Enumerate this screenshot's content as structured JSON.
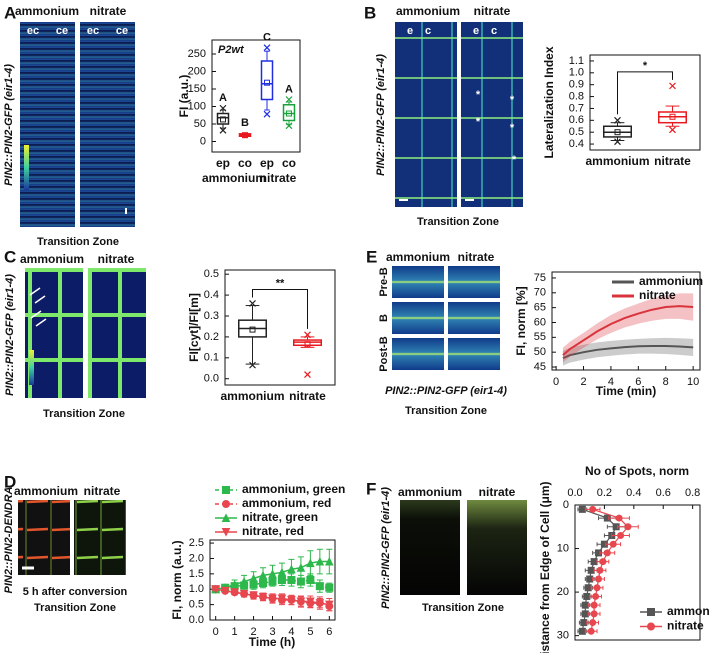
{
  "panels": [
    {
      "letter": "A",
      "headers": [
        "ammonium",
        "nitrate"
      ],
      "image_labels": [
        "ec",
        "ce",
        "ec",
        "ce"
      ],
      "construct": "PIN2::PIN2-GFP (eir1-4)",
      "zone": "Transition Zone"
    },
    {
      "letter": "B",
      "headers": [
        "ammonium",
        "nitrate"
      ],
      "image_labels": [
        "e",
        "c",
        "e",
        "c"
      ],
      "marks": "*",
      "construct": "PIN2::PIN2-GFP (eir1-4)",
      "zone": "Transition Zone"
    },
    {
      "letter": "C",
      "headers": [
        "ammonium",
        "nitrate"
      ],
      "construct": "PIN2::PIN2-GFP (eir1-4)",
      "zone": "Transition Zone"
    },
    {
      "letter": "D",
      "headers": [
        "ammonium",
        "nitrate"
      ],
      "construct": "PIN2::PIN2-DENDRA",
      "caption": "5 h after conversion",
      "zone": "Transition Zone"
    },
    {
      "letter": "E",
      "headers": [
        "ammonium",
        "nitrate"
      ],
      "rows": [
        "Pre-B",
        "B",
        "Post-B"
      ],
      "construct": "PIN2::PIN2-GFP (eir1-4)",
      "zone": "Transition Zone"
    },
    {
      "letter": "F",
      "headers": [
        "ammonium",
        "nitrate"
      ],
      "construct": "PIN2::PIN2-GFP (eir1-4)",
      "zone": "Transition Zone"
    }
  ],
  "chart_data": [
    {
      "type": "box",
      "title": "P2wt",
      "ylabel": "FI (a.u.)",
      "categories": [
        "ep",
        "co",
        "ep",
        "co"
      ],
      "groups": [
        "ammonium",
        "nitrate"
      ],
      "ylim": [
        -30,
        290
      ],
      "yticks": [
        0,
        50,
        100,
        150,
        200,
        250
      ],
      "annotations": [
        "A",
        "B",
        "C",
        "A"
      ],
      "boxes": [
        {
          "color": "#222222",
          "whisker_low": 38,
          "q1": 50,
          "median": 68,
          "q3": 80,
          "whisker_high": 90,
          "mean": 63,
          "outliers": [
            95,
            32
          ]
        },
        {
          "color": "#e8191f",
          "whisker_low": 13,
          "q1": 15,
          "median": 19,
          "q3": 22,
          "whisker_high": 24,
          "mean": 18,
          "outliers": []
        },
        {
          "color": "#1f2fe0",
          "whisker_low": 90,
          "q1": 120,
          "median": 165,
          "q3": 230,
          "whisker_high": 258,
          "mean": 168,
          "outliers": [
            268,
            78
          ]
        },
        {
          "color": "#18a33a",
          "whisker_low": 48,
          "q1": 60,
          "median": 80,
          "q3": 105,
          "whisker_high": 113,
          "mean": 80,
          "outliers": [
            120,
            45
          ]
        }
      ]
    },
    {
      "type": "box",
      "ylabel": "Lateralization Index",
      "categories": [
        "ammonium",
        "nitrate"
      ],
      "ylim": [
        0.35,
        1.15
      ],
      "yticks": [
        0.4,
        0.5,
        0.6,
        0.7,
        0.8,
        0.9,
        {
          "value": 1,
          "label": "1.0"
        },
        1.1
      ],
      "significance": "*",
      "boxes": [
        {
          "color": "#222222",
          "whisker_low": 0.43,
          "q1": 0.46,
          "median": 0.5,
          "q3": 0.55,
          "whisker_high": 0.58,
          "mean": 0.5,
          "outliers": [
            0.6,
            0.42
          ]
        },
        {
          "color": "#e8191f",
          "whisker_low": 0.55,
          "q1": 0.58,
          "median": 0.63,
          "q3": 0.67,
          "whisker_high": 0.72,
          "mean": 0.63,
          "outliers": [
            0.89,
            0.52
          ]
        }
      ]
    },
    {
      "type": "box",
      "ylabel": "FI[cyt]/FI[m]",
      "categories": [
        "ammonium",
        "nitrate"
      ],
      "ylim": [
        -0.03,
        0.52
      ],
      "yticks": [
        {
          "value": 0,
          "label": "0.0"
        },
        0.1,
        0.2,
        0.3,
        0.4,
        0.5
      ],
      "significance": "**",
      "boxes": [
        {
          "color": "#222222",
          "whisker_low": 0.07,
          "q1": 0.2,
          "median": 0.24,
          "q3": 0.28,
          "whisker_high": 0.35,
          "mean": 0.235,
          "outliers": [
            0.36,
            0.065
          ]
        },
        {
          "color": "#e8191f",
          "whisker_low": 0.15,
          "q1": 0.16,
          "median": 0.175,
          "q3": 0.185,
          "whisker_high": 0.2,
          "mean": 0.165,
          "outliers": [
            0.21,
            0.02
          ]
        }
      ]
    },
    {
      "type": "line",
      "ylabel": "FI, norm (a.u.)",
      "xlabel": "Time (h)",
      "x": [
        0,
        0.5,
        1,
        1.5,
        2,
        2.5,
        3,
        3.5,
        4,
        4.5,
        5,
        5.5,
        6
      ],
      "xlim": [
        -0.3,
        6.3
      ],
      "xticks": [
        0,
        1,
        2,
        3,
        4,
        5,
        6
      ],
      "ylim": [
        0,
        2.6
      ],
      "yticks": [
        {
          "value": 0,
          "label": "0.0"
        },
        0.5,
        {
          "value": 1,
          "label": "1.0"
        },
        1.5,
        {
          "value": 2,
          "label": "2.0"
        },
        2.5
      ],
      "series": [
        {
          "name": "ammonium, green",
          "color": "#2db84b",
          "marker": "square",
          "linestyle": "dashed",
          "values": [
            1,
            1.05,
            1.1,
            1.12,
            1.15,
            1.2,
            1.25,
            1.3,
            1.3,
            1.25,
            1.3,
            1.1,
            1.05
          ],
          "errors": [
            0,
            0.08,
            0.1,
            0.12,
            0.15,
            0.15,
            0.15,
            0.18,
            0.2,
            0.2,
            0.2,
            0.2,
            0.15
          ]
        },
        {
          "name": "ammonium, red",
          "color": "#e8474f",
          "marker": "circle",
          "linestyle": "dashed",
          "values": [
            1,
            0.95,
            0.9,
            0.85,
            0.8,
            0.75,
            0.7,
            0.65,
            0.65,
            0.6,
            0.55,
            0.55,
            0.45
          ],
          "errors": [
            0,
            0.05,
            0.08,
            0.1,
            0.1,
            0.12,
            0.12,
            0.15,
            0.15,
            0.15,
            0.15,
            0.15,
            0.15
          ]
        },
        {
          "name": "nitrate, green",
          "color": "#2db84b",
          "marker": "triangle",
          "linestyle": "solid",
          "values": [
            1,
            1.05,
            1.15,
            1.25,
            1.35,
            1.45,
            1.5,
            1.55,
            1.65,
            1.7,
            1.85,
            1.9,
            1.9
          ],
          "errors": [
            0,
            0.1,
            0.15,
            0.2,
            0.22,
            0.25,
            0.28,
            0.3,
            0.32,
            0.35,
            0.4,
            0.4,
            0.4
          ]
        },
        {
          "name": "nitrate, red",
          "color": "#e8474f",
          "marker": "triangle-down",
          "linestyle": "solid",
          "values": [
            1,
            0.95,
            0.9,
            0.85,
            0.8,
            0.75,
            0.7,
            0.7,
            0.65,
            0.6,
            0.6,
            0.55,
            0.5
          ],
          "errors": [
            0,
            0.05,
            0.08,
            0.1,
            0.12,
            0.12,
            0.15,
            0.15,
            0.15,
            0.18,
            0.18,
            0.2,
            0.2
          ]
        }
      ]
    },
    {
      "type": "line",
      "ylabel": "FI, norm [%]",
      "xlabel": "Time (min)",
      "x": [
        0.5,
        1,
        2,
        3,
        4,
        5,
        6,
        7,
        8,
        9,
        10
      ],
      "xlim": [
        -0.3,
        10.5
      ],
      "xticks": [
        0,
        2,
        4,
        6,
        8,
        10
      ],
      "ylim": [
        44,
        77
      ],
      "yticks": [
        45,
        50,
        55,
        60,
        65,
        70,
        75
      ],
      "series": [
        {
          "name": "ammonium",
          "color": "#555555",
          "values": [
            48,
            49,
            50,
            50.8,
            51.3,
            51.7,
            52,
            52.1,
            52.1,
            51.9,
            51.6
          ],
          "lower": [
            45.5,
            46.5,
            47.5,
            48.3,
            48.8,
            49.2,
            49.5,
            49.5,
            49.4,
            49.1,
            48.7
          ],
          "upper": [
            50.5,
            51.5,
            52.5,
            53.3,
            53.8,
            54.2,
            54.5,
            54.7,
            54.8,
            54.7,
            54.5
          ]
        },
        {
          "name": "nitrate",
          "color": "#d9343c",
          "values": [
            49,
            51,
            54,
            57,
            59.5,
            61.5,
            63,
            64.3,
            65.2,
            65.5,
            65.2
          ],
          "lower": [
            46.5,
            48.5,
            51.5,
            54.3,
            56.5,
            58.3,
            59.6,
            60.6,
            61.2,
            61.2,
            60.6
          ],
          "upper": [
            51.5,
            53.5,
            56.5,
            59.7,
            62.5,
            64.7,
            66.4,
            68,
            69.2,
            69.8,
            69.8
          ]
        }
      ]
    },
    {
      "type": "line",
      "orientation": "horizontal",
      "inverted_y": true,
      "xlabel": "No of Spots, norm",
      "ylabel": "Distance from Edge of Cell (μm)",
      "y": [
        1,
        3,
        5,
        7,
        9,
        11,
        13,
        15,
        17,
        19,
        21,
        23,
        25,
        27,
        29
      ],
      "xlim": [
        0,
        0.85
      ],
      "xticks": [
        {
          "value": 0,
          "label": "0.0"
        },
        0.2,
        0.4,
        0.6,
        0.8
      ],
      "ylim": [
        0,
        31
      ],
      "yticks": [
        0,
        10,
        20,
        30
      ],
      "series": [
        {
          "name": "ammonium",
          "color": "#555555",
          "marker": "square",
          "values": [
            0.05,
            0.22,
            0.28,
            0.25,
            0.2,
            0.16,
            0.13,
            0.11,
            0.1,
            0.09,
            0.08,
            0.07,
            0.07,
            0.06,
            0.05
          ],
          "errors": [
            0.03,
            0.06,
            0.06,
            0.05,
            0.05,
            0.04,
            0.04,
            0.04,
            0.03,
            0.03,
            0.03,
            0.03,
            0.03,
            0.03,
            0.03
          ]
        },
        {
          "name": "nitrate",
          "color": "#e8474f",
          "marker": "circle",
          "values": [
            0.12,
            0.3,
            0.36,
            0.31,
            0.26,
            0.22,
            0.19,
            0.17,
            0.16,
            0.15,
            0.14,
            0.13,
            0.13,
            0.12,
            0.11
          ],
          "errors": [
            0.05,
            0.07,
            0.07,
            0.06,
            0.05,
            0.05,
            0.04,
            0.04,
            0.04,
            0.04,
            0.04,
            0.04,
            0.04,
            0.04,
            0.04
          ]
        }
      ]
    }
  ]
}
